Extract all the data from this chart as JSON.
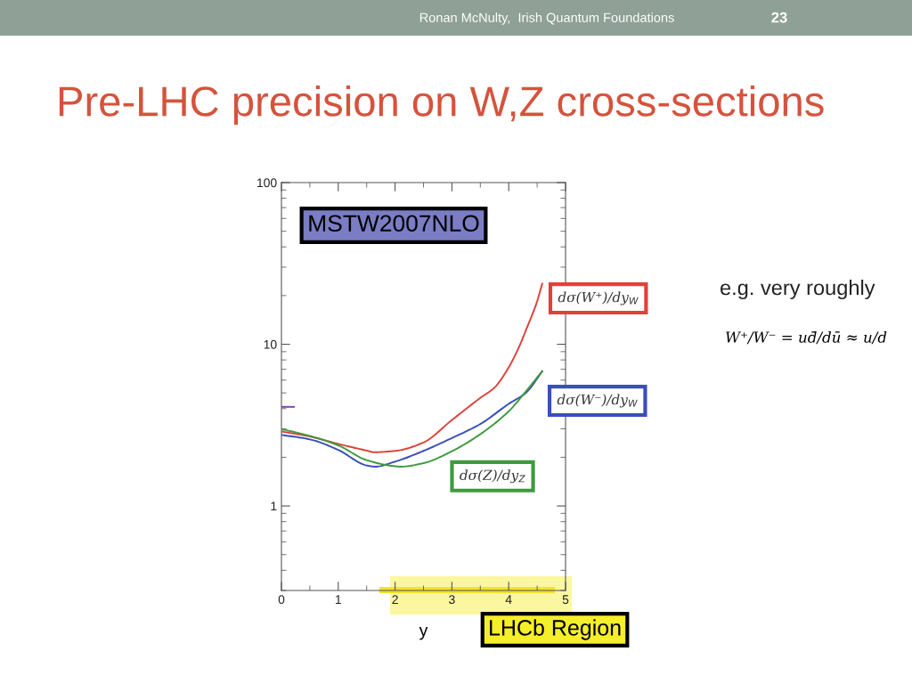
{
  "chart_data": {
    "type": "line",
    "title": "Pre-LHC precision on W,Z cross-sections",
    "xlabel": "y",
    "annotations": [
      "Ronan McNulty,  Irish Quantum Foundations",
      "23",
      "MSTW2007NLO",
      "e.g. very roughly",
      "W⁺/W⁻ = ud̄/dū ≈ u/d",
      "LHCb Region"
    ],
    "xlim": [
      0,
      5
    ],
    "xticks": [
      0,
      1,
      2,
      3,
      4,
      5
    ],
    "ylim": [
      0.3,
      100
    ],
    "yticks": [
      1,
      10,
      100
    ],
    "log": true,
    "grid": false,
    "legend": false,
    "marker": "none",
    "line_style": "solid",
    "series": [
      {
        "name": "dσ(W⁺)/dy$_{W}$",
        "color": "#e0413a",
        "x": [
          0,
          0.5,
          1,
          1.5,
          1.63,
          2,
          2.5,
          3,
          3.5,
          3.75,
          4,
          4.18,
          4.33,
          4.49,
          4.59
        ],
        "values": [
          2.89,
          2.69,
          2.42,
          2.2,
          2.15,
          2.19,
          2.47,
          3.4,
          4.66,
          5.4,
          7.2,
          9.6,
          12.9,
          18,
          23.7
        ]
      },
      {
        "name": "dσ(W⁻)/dy$_{W}$",
        "color": "#3a4fb8",
        "x": [
          0,
          0.5,
          1,
          1.5,
          1.65,
          2,
          2.5,
          3,
          3.5,
          4,
          4.3,
          4.59
        ],
        "values": [
          2.75,
          2.58,
          2.22,
          1.78,
          1.75,
          1.88,
          2.19,
          2.63,
          3.21,
          4.28,
          5.0,
          6.8
        ]
      },
      {
        "name": "dσ(Z)/dy$_{Z}$",
        "color": "#3f9a3f",
        "x": [
          0,
          0.5,
          1,
          1.5,
          2,
          2.1,
          2.5,
          3,
          3.5,
          4,
          4.3,
          4.59
        ],
        "values": [
          2.99,
          2.71,
          2.37,
          1.92,
          1.76,
          1.75,
          1.84,
          2.18,
          2.78,
          3.85,
          5.1,
          6.82
        ]
      },
      {
        "color": "#8b3fa8",
        "x": [
          0,
          0.22
        ],
        "values": [
          4.1,
          4.1
        ]
      }
    ]
  }
}
